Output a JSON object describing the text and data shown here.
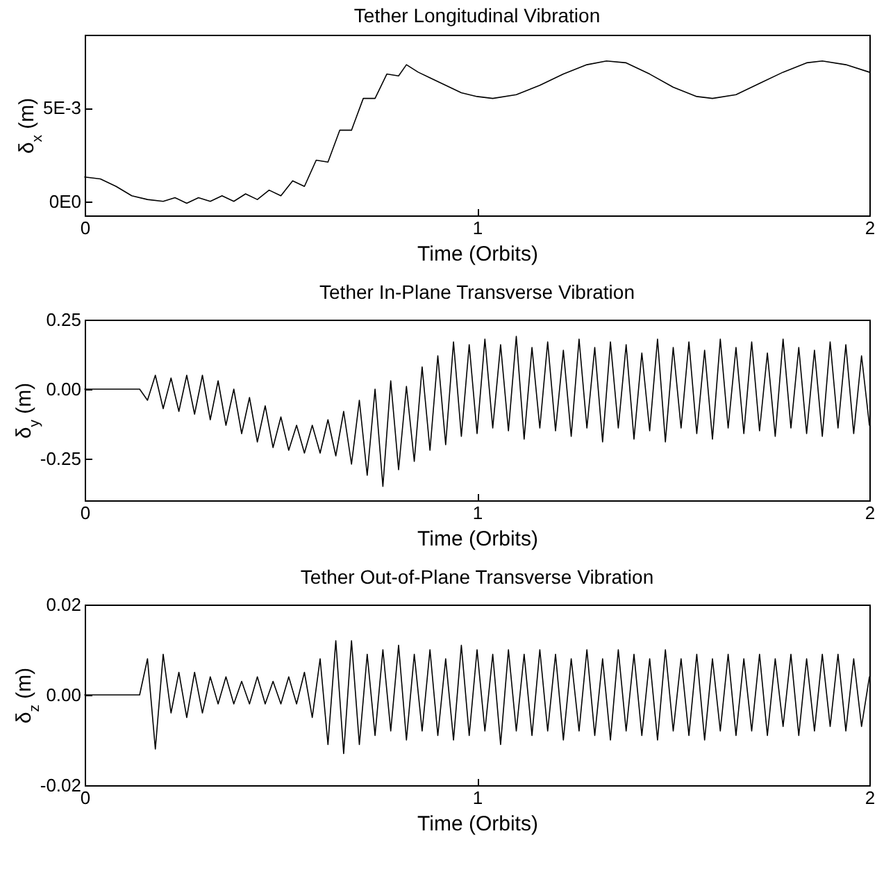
{
  "chart_data": [
    {
      "type": "line",
      "title": "Tether Longitudinal Vibration",
      "xlabel": "Time (Orbits)",
      "ylabel": "δ$_{x}$ (m)",
      "color": "#000000",
      "xlim": [
        0,
        2
      ],
      "xticks": [
        0,
        1,
        2
      ],
      "ylim": [
        -0.00075,
        0.0089
      ],
      "yticks": [
        {
          "value": 0,
          "label": "0E0"
        },
        {
          "value": 0.005,
          "label": "5E-3"
        }
      ],
      "grid": false,
      "x": [
        0,
        0.04,
        0.08,
        0.12,
        0.16,
        0.2,
        0.23,
        0.26,
        0.29,
        0.32,
        0.35,
        0.38,
        0.41,
        0.44,
        0.47,
        0.5,
        0.53,
        0.56,
        0.59,
        0.62,
        0.65,
        0.68,
        0.71,
        0.74,
        0.77,
        0.8,
        0.82,
        0.85,
        0.88,
        0.92,
        0.96,
        1.0,
        1.04,
        1.1,
        1.16,
        1.22,
        1.28,
        1.33,
        1.38,
        1.44,
        1.5,
        1.56,
        1.6,
        1.66,
        1.72,
        1.78,
        1.84,
        1.88,
        1.94,
        2.0
      ],
      "values": [
        0.0013,
        0.0012,
        0.0008,
        0.0003,
        0.0001,
        0.0,
        0.0002,
        -0.0001,
        0.0002,
        0.0,
        0.0003,
        0.0,
        0.0004,
        0.0001,
        0.0006,
        0.0003,
        0.0011,
        0.0008,
        0.0022,
        0.0021,
        0.0038,
        0.0038,
        0.0055,
        0.0055,
        0.0068,
        0.0067,
        0.0073,
        0.0069,
        0.0066,
        0.0062,
        0.0058,
        0.0056,
        0.0055,
        0.0057,
        0.0062,
        0.0068,
        0.0073,
        0.0075,
        0.0074,
        0.0068,
        0.0061,
        0.0056,
        0.0055,
        0.0057,
        0.0063,
        0.0069,
        0.0074,
        0.0075,
        0.0073,
        0.0069
      ]
    },
    {
      "type": "line",
      "title": "Tether In-Plane Transverse Vibration",
      "xlabel": "Time (Orbits)",
      "ylabel": "δ$_{y}$ (m)",
      "color": "#000000",
      "xlim": [
        0,
        2
      ],
      "xticks": [
        0,
        1,
        2
      ],
      "ylim": [
        -0.4,
        0.25
      ],
      "yticks": [
        {
          "value": -0.25,
          "label": "-0.25"
        },
        {
          "value": 0,
          "label": "0.00"
        },
        {
          "value": 0.25,
          "label": "0.25"
        }
      ],
      "grid": false,
      "x": [
        0,
        0.14,
        0.16,
        0.18,
        0.2,
        0.22,
        0.24,
        0.26,
        0.28,
        0.3,
        0.32,
        0.34,
        0.36,
        0.38,
        0.4,
        0.42,
        0.44,
        0.46,
        0.48,
        0.5,
        0.52,
        0.54,
        0.56,
        0.58,
        0.6,
        0.62,
        0.64,
        0.66,
        0.68,
        0.7,
        0.72,
        0.74,
        0.76,
        0.78,
        0.8,
        0.82,
        0.84,
        0.86,
        0.88,
        0.9,
        0.92,
        0.94,
        0.96,
        0.98,
        1.0,
        1.02,
        1.04,
        1.06,
        1.08,
        1.1,
        1.12,
        1.14,
        1.16,
        1.18,
        1.2,
        1.22,
        1.24,
        1.26,
        1.28,
        1.3,
        1.32,
        1.34,
        1.36,
        1.38,
        1.4,
        1.42,
        1.44,
        1.46,
        1.48,
        1.5,
        1.52,
        1.54,
        1.56,
        1.58,
        1.6,
        1.62,
        1.64,
        1.66,
        1.68,
        1.7,
        1.72,
        1.74,
        1.76,
        1.78,
        1.8,
        1.82,
        1.84,
        1.86,
        1.88,
        1.9,
        1.92,
        1.94,
        1.96,
        1.98,
        2.0
      ],
      "values": [
        0,
        0,
        -0.04,
        0.05,
        -0.07,
        0.04,
        -0.08,
        0.05,
        -0.09,
        0.05,
        -0.11,
        0.03,
        -0.13,
        0.0,
        -0.16,
        -0.03,
        -0.19,
        -0.06,
        -0.21,
        -0.1,
        -0.22,
        -0.13,
        -0.23,
        -0.13,
        -0.23,
        -0.11,
        -0.24,
        -0.08,
        -0.27,
        -0.04,
        -0.31,
        0.0,
        -0.35,
        0.03,
        -0.29,
        0.01,
        -0.26,
        0.08,
        -0.22,
        0.12,
        -0.2,
        0.17,
        -0.17,
        0.16,
        -0.16,
        0.18,
        -0.14,
        0.16,
        -0.15,
        0.19,
        -0.18,
        0.15,
        -0.14,
        0.17,
        -0.15,
        0.14,
        -0.17,
        0.18,
        -0.14,
        0.15,
        -0.19,
        0.17,
        -0.14,
        0.16,
        -0.18,
        0.13,
        -0.15,
        0.18,
        -0.19,
        0.15,
        -0.14,
        0.17,
        -0.16,
        0.14,
        -0.18,
        0.18,
        -0.14,
        0.15,
        -0.16,
        0.17,
        -0.15,
        0.13,
        -0.17,
        0.18,
        -0.14,
        0.15,
        -0.16,
        0.14,
        -0.17,
        0.17,
        -0.14,
        0.16,
        -0.16,
        0.12,
        -0.13
      ]
    },
    {
      "type": "line",
      "title": "Tether Out-of-Plane Transverse Vibration",
      "xlabel": "Time (Orbits)",
      "ylabel": "δ$_{z}$ (m)",
      "color": "#000000",
      "xlim": [
        0,
        2
      ],
      "xticks": [
        0,
        1,
        2
      ],
      "ylim": [
        -0.02,
        0.02
      ],
      "yticks": [
        {
          "value": -0.02,
          "label": "-0.02"
        },
        {
          "value": 0,
          "label": "0.00"
        },
        {
          "value": 0.02,
          "label": "0.02"
        }
      ],
      "grid": false,
      "x": [
        0,
        0.14,
        0.16,
        0.18,
        0.2,
        0.22,
        0.24,
        0.26,
        0.28,
        0.3,
        0.32,
        0.34,
        0.36,
        0.38,
        0.4,
        0.42,
        0.44,
        0.46,
        0.48,
        0.5,
        0.52,
        0.54,
        0.56,
        0.58,
        0.6,
        0.62,
        0.64,
        0.66,
        0.68,
        0.7,
        0.72,
        0.74,
        0.76,
        0.78,
        0.8,
        0.82,
        0.84,
        0.86,
        0.88,
        0.9,
        0.92,
        0.94,
        0.96,
        0.98,
        1.0,
        1.02,
        1.04,
        1.06,
        1.08,
        1.1,
        1.12,
        1.14,
        1.16,
        1.18,
        1.2,
        1.22,
        1.24,
        1.26,
        1.28,
        1.3,
        1.32,
        1.34,
        1.36,
        1.38,
        1.4,
        1.42,
        1.44,
        1.46,
        1.48,
        1.5,
        1.52,
        1.54,
        1.56,
        1.58,
        1.6,
        1.62,
        1.64,
        1.66,
        1.68,
        1.7,
        1.72,
        1.74,
        1.76,
        1.78,
        1.8,
        1.82,
        1.84,
        1.86,
        1.88,
        1.9,
        1.92,
        1.94,
        1.96,
        1.98,
        2.0
      ],
      "values": [
        0,
        0,
        0.008,
        -0.012,
        0.009,
        -0.004,
        0.005,
        -0.005,
        0.005,
        -0.004,
        0.004,
        -0.002,
        0.004,
        -0.002,
        0.003,
        -0.002,
        0.004,
        -0.002,
        0.003,
        -0.002,
        0.004,
        -0.002,
        0.005,
        -0.005,
        0.008,
        -0.011,
        0.012,
        -0.013,
        0.012,
        -0.011,
        0.009,
        -0.009,
        0.01,
        -0.008,
        0.011,
        -0.01,
        0.009,
        -0.008,
        0.01,
        -0.009,
        0.008,
        -0.01,
        0.011,
        -0.009,
        0.01,
        -0.008,
        0.009,
        -0.011,
        0.01,
        -0.008,
        0.009,
        -0.009,
        0.01,
        -0.008,
        0.009,
        -0.01,
        0.008,
        -0.008,
        0.01,
        -0.009,
        0.008,
        -0.01,
        0.01,
        -0.008,
        0.009,
        -0.009,
        0.008,
        -0.01,
        0.01,
        -0.008,
        0.008,
        -0.009,
        0.009,
        -0.01,
        0.008,
        -0.008,
        0.009,
        -0.009,
        0.008,
        -0.008,
        0.009,
        -0.009,
        0.008,
        -0.007,
        0.009,
        -0.009,
        0.008,
        -0.008,
        0.009,
        -0.007,
        0.009,
        -0.008,
        0.008,
        -0.007,
        0.004
      ]
    }
  ]
}
